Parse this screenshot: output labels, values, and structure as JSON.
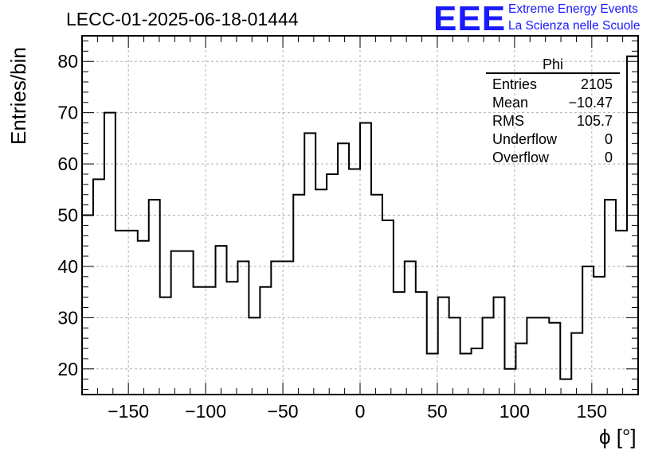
{
  "run_title": "LECC-01-2025-06-18-01444",
  "logo": {
    "mark": "EEE",
    "line1": "Extreme Energy Events",
    "line2": "La Scienza nelle Scuole",
    "color": "#1a1aff"
  },
  "stats_box": {
    "title": "Phi",
    "rows": [
      {
        "label": "Entries",
        "value": "2105"
      },
      {
        "label": "Mean",
        "value": "−10.47"
      },
      {
        "label": "RMS",
        "value": "105.7"
      },
      {
        "label": "Underflow",
        "value": "0"
      },
      {
        "label": "Overflow",
        "value": "0"
      }
    ]
  },
  "chart_data": {
    "type": "histogram",
    "title": "LECC-01-2025-06-18-01444",
    "xlabel": "ϕ [°]",
    "ylabel": "Entries/bin",
    "xlim": [
      -180,
      180
    ],
    "ylim": [
      15,
      85
    ],
    "bin_width": 7.2,
    "bin_edges_start": -180,
    "values": [
      50,
      57,
      70,
      47,
      47,
      45,
      53,
      34,
      43,
      43,
      36,
      36,
      44,
      37,
      41,
      30,
      36,
      41,
      41,
      54,
      66,
      55,
      58,
      64,
      59,
      68,
      54,
      49,
      35,
      41,
      35,
      23,
      34,
      30,
      23,
      24,
      30,
      34,
      20,
      25,
      30,
      30,
      29,
      18,
      27,
      40,
      38,
      53,
      47,
      81
    ],
    "xticks": [
      -150,
      -100,
      -50,
      0,
      50,
      100,
      150
    ],
    "xtick_labels": [
      "−150",
      "−100",
      "−50",
      "0",
      "50",
      "100",
      "150"
    ],
    "yticks": [
      20,
      30,
      40,
      50,
      60,
      70,
      80
    ],
    "ytick_labels": [
      "20",
      "30",
      "40",
      "50",
      "60",
      "70",
      "80"
    ],
    "grid": true,
    "line_color": "#000000",
    "grid_color": "#b0b0b0"
  }
}
